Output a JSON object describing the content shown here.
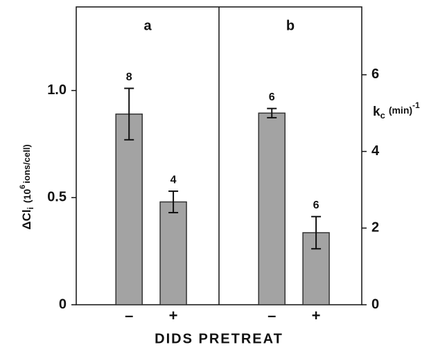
{
  "figure": {
    "xlabel": "DIDS PRETREAT"
  },
  "chart_data": [
    {
      "type": "bar",
      "title": "a",
      "categories": [
        "–",
        "+"
      ],
      "values": [
        0.89,
        0.48
      ],
      "errors": [
        0.12,
        0.05
      ],
      "annotations": [
        "8",
        "4"
      ],
      "color": "#a3a3a3",
      "ylabel": [
        "ΔCl",
        "i",
        "(10",
        "6",
        "ions/cell)"
      ],
      "ylim": [
        0,
        1.39
      ],
      "yticks": [
        0,
        0.5,
        {
          "value": 1,
          "label": "1.0"
        }
      ],
      "axis_side": "left"
    },
    {
      "type": "bar",
      "title": "b",
      "categories": [
        "–",
        "+"
      ],
      "values": [
        5.0,
        1.88
      ],
      "errors": [
        0.12,
        0.42
      ],
      "annotations": [
        "6",
        "6"
      ],
      "color": "#a3a3a3",
      "ylabel": [
        "k",
        "c",
        "(min)",
        "-1"
      ],
      "ylim": [
        0,
        7.77
      ],
      "yticks": [
        0,
        2,
        4,
        6
      ],
      "axis_side": "right"
    }
  ]
}
